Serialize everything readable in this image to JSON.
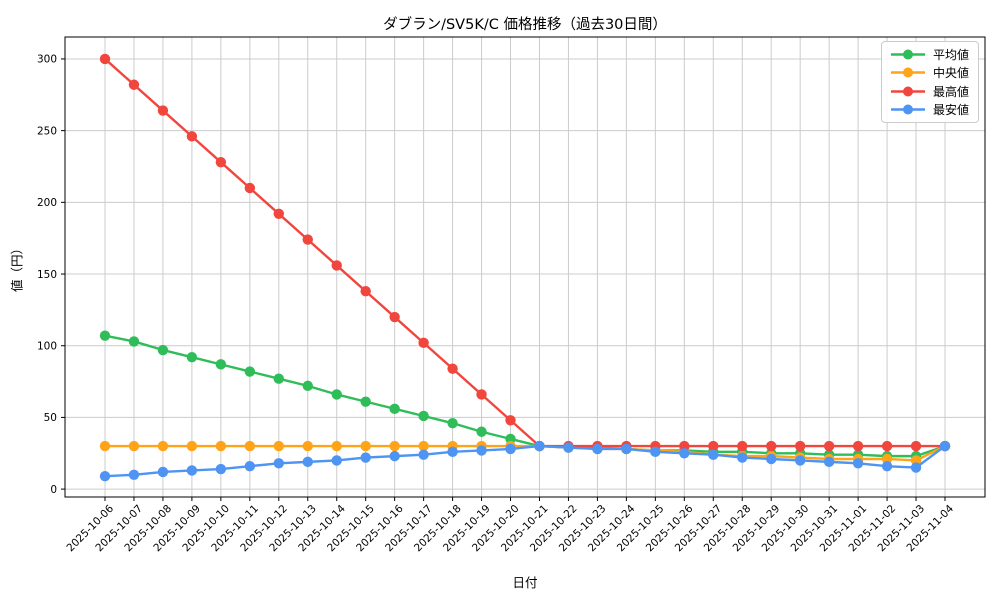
{
  "title": "ダブラン/SV5K/C 価格推移（過去30日間）",
  "chart_data": {
    "type": "line",
    "title": "ダブラン/SV5K/C 価格推移（過去30日間）",
    "xlabel": "日付",
    "ylabel": "値（円）",
    "x": [
      "2025-10-06",
      "2025-10-07",
      "2025-10-08",
      "2025-10-09",
      "2025-10-10",
      "2025-10-11",
      "2025-10-12",
      "2025-10-13",
      "2025-10-14",
      "2025-10-15",
      "2025-10-16",
      "2025-10-17",
      "2025-10-18",
      "2025-10-19",
      "2025-10-20",
      "2025-10-21",
      "2025-10-22",
      "2025-10-23",
      "2025-10-24",
      "2025-10-25",
      "2025-10-26",
      "2025-10-27",
      "2025-10-28",
      "2025-10-29",
      "2025-10-30",
      "2025-10-31",
      "2025-11-01",
      "2025-11-02",
      "2025-11-03",
      "2025-11-04"
    ],
    "series": [
      {
        "key": "average",
        "name": "平均値",
        "color": "#2fbd59",
        "values": [
          107,
          103,
          97,
          92,
          87,
          82,
          77,
          72,
          66,
          61,
          56,
          51,
          46,
          40,
          35,
          30,
          29,
          29,
          28,
          27,
          27,
          26,
          26,
          25,
          25,
          24,
          24,
          23,
          23,
          30
        ]
      },
      {
        "key": "median",
        "name": "中央値",
        "color": "#ffa418",
        "values": [
          30,
          30,
          30,
          30,
          30,
          30,
          30,
          30,
          30,
          30,
          30,
          30,
          30,
          30,
          30,
          30,
          29,
          28,
          28,
          27,
          26,
          24,
          23,
          23,
          22,
          21,
          21,
          21,
          20,
          30
        ]
      },
      {
        "key": "highest",
        "name": "最高値",
        "color": "#f1463e",
        "values": [
          300,
          282,
          264,
          246,
          228,
          210,
          192,
          174,
          156,
          138,
          120,
          102,
          84,
          66,
          48,
          30,
          30,
          30,
          30,
          30,
          30,
          30,
          30,
          30,
          30,
          30,
          30,
          30,
          30,
          30
        ]
      },
      {
        "key": "lowest",
        "name": "最安値",
        "color": "#4d94f3",
        "values": [
          9,
          10,
          12,
          13,
          14,
          16,
          18,
          19,
          20,
          22,
          23,
          24,
          26,
          27,
          28,
          30,
          29,
          28,
          28,
          26,
          25,
          24,
          22,
          21,
          20,
          19,
          18,
          16,
          15,
          30
        ]
      }
    ],
    "yticks": [
      0,
      50,
      100,
      150,
      200,
      250,
      300
    ],
    "ylim": [
      -5.5,
      315.3
    ],
    "grid": true,
    "legend_position": "upper right",
    "grid_color": "#cccccc",
    "spine_color": "#000000"
  }
}
